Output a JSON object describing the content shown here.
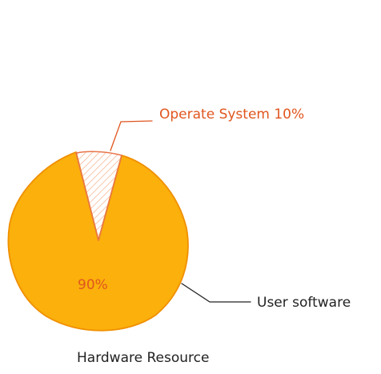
{
  "diagram": {
    "segments": [
      {
        "name": "Operate System",
        "value": 10,
        "label": "Operate System 10%",
        "fill": "#ffffff",
        "hatch": "#f4a37a",
        "stroke": "#e8744a"
      },
      {
        "name": "User software",
        "value": 90,
        "inner_label": "90%",
        "outer_label": "User software",
        "fill": "#fbb00b",
        "stroke": "#f08f00"
      }
    ],
    "caption": "Hardware Resource",
    "colors": {
      "accent_text": "#e0561f",
      "main_fill": "#fbb00b",
      "main_stroke": "#f08f00",
      "leader_line": "#222222",
      "label_text": "#222222",
      "os_leader": "#e0561f"
    }
  }
}
